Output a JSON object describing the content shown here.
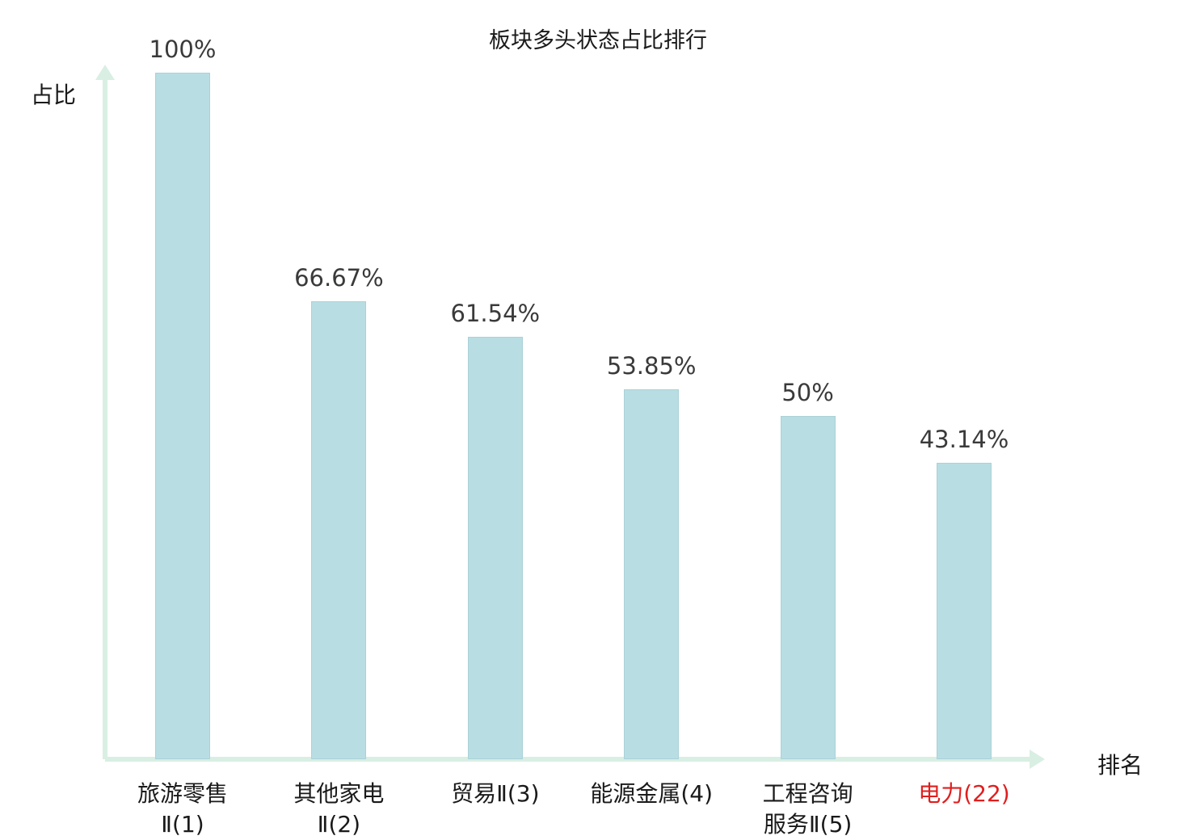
{
  "chart_data": {
    "type": "bar",
    "title": "板块多头状态占比排行",
    "xlabel": "排名",
    "ylabel": "占比",
    "categories": [
      "旅游零售\nⅡ(1)",
      "其他家电\nⅡ(2)",
      "贸易Ⅱ(3)",
      "能源金属(4)",
      "工程咨询\n服务Ⅱ(5)",
      "电力(22)"
    ],
    "values": [
      100,
      66.67,
      61.54,
      53.85,
      50,
      43.14
    ],
    "value_labels": [
      "100%",
      "66.67%",
      "61.54%",
      "53.85%",
      "50%",
      "43.14%"
    ],
    "highlight_index": 5,
    "ylim": [
      0,
      100
    ],
    "legend": "none",
    "grid": false,
    "colors": {
      "bar_fill": "#b8dde2",
      "bar_border": "#aad2d8",
      "axis": "#d9efe4",
      "label": "#3a3a3a",
      "category": "#1a1a1a",
      "highlight": "#e01e1e"
    }
  }
}
